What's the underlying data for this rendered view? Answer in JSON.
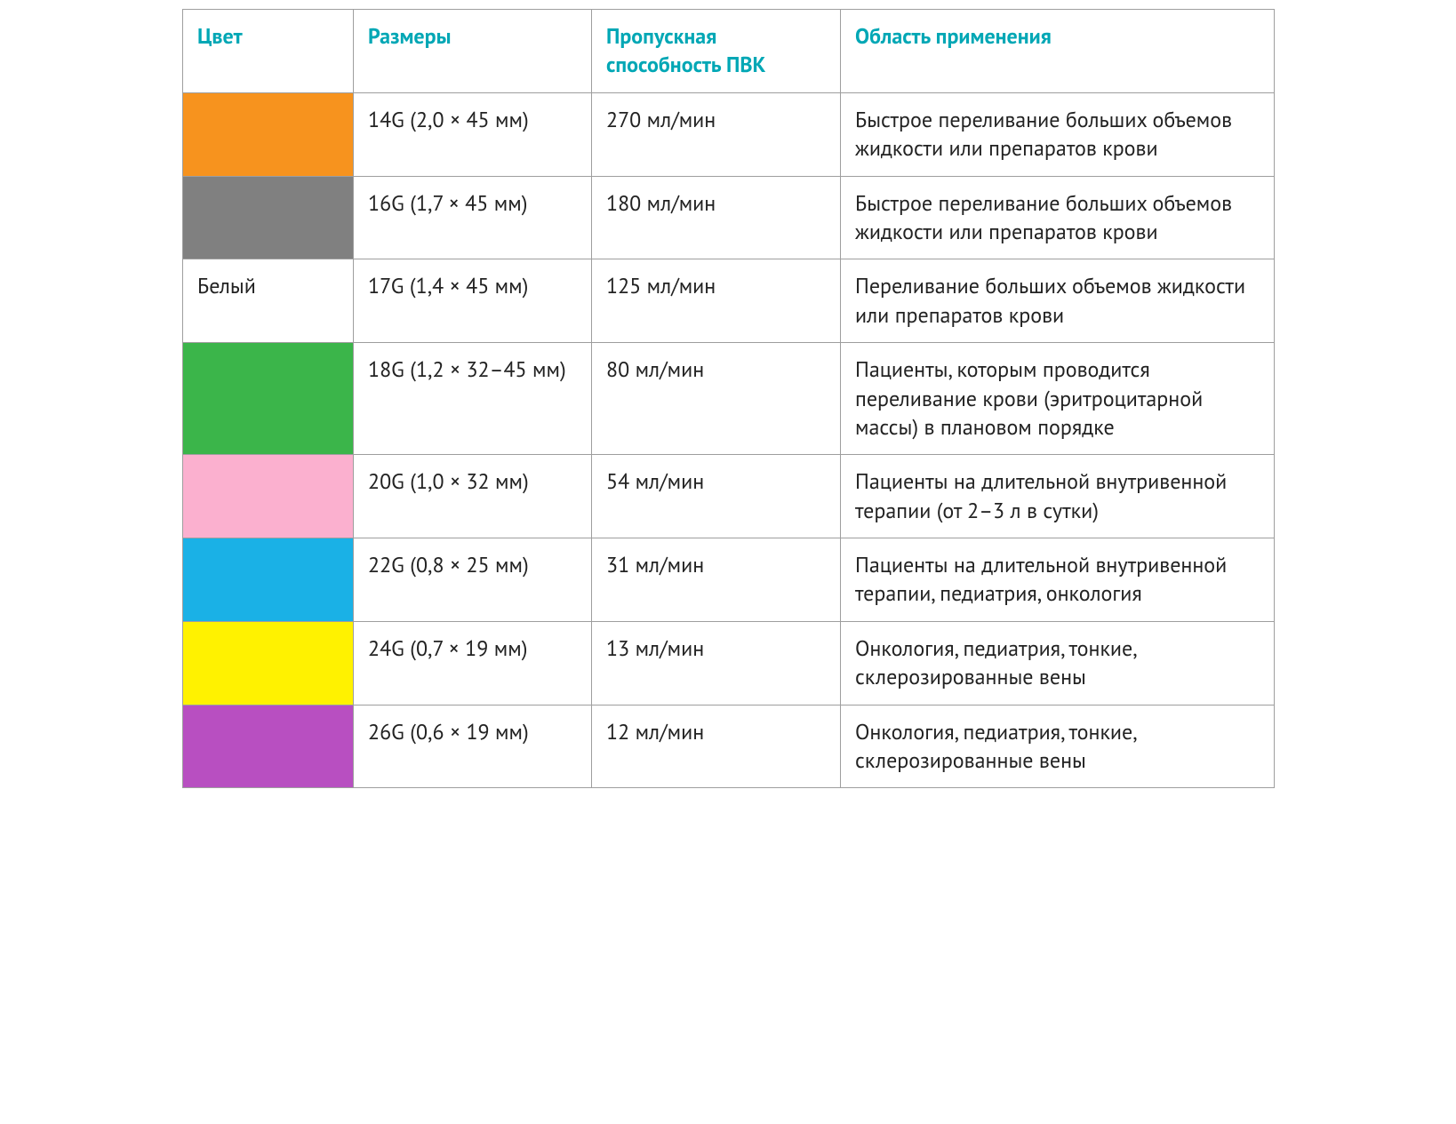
{
  "table": {
    "header_color": "#00a7b5",
    "border_color": "#9e9e9e",
    "text_color": "#222222",
    "font_size_pt": 18,
    "header_font_weight": 700,
    "columns": [
      {
        "key": "color",
        "label": "Цвет"
      },
      {
        "key": "size",
        "label": "Размеры"
      },
      {
        "key": "throughput",
        "label": "Пропускная способность ПВК"
      },
      {
        "key": "application",
        "label": "Область применения"
      }
    ],
    "rows": [
      {
        "color_swatch": "#f7931e",
        "color_text": "",
        "size": "14G (2,0 × 45 мм)",
        "throughput": "270 мл/мин",
        "application": "Быстрое переливание больших объемов жидкости или препаратов крови"
      },
      {
        "color_swatch": "#808080",
        "color_text": "",
        "size": "16G (1,7 × 45 мм)",
        "throughput": "180 мл/мин",
        "application": "Быстрое переливание больших объемов жидкости или препаратов крови"
      },
      {
        "color_swatch": "#ffffff",
        "color_text": "Белый",
        "size": "17G (1,4 × 45 мм)",
        "throughput": "125 мл/мин",
        "application": "Переливание больших объемов жидкости или препаратов крови"
      },
      {
        "color_swatch": "#3bb54a",
        "color_text": "",
        "size": "18G (1,2 × 32–45 мм)",
        "throughput": "80 мл/мин",
        "application": "Пациенты, которым проводится переливание крови (эритроцитарной массы) в плановом порядке"
      },
      {
        "color_swatch": "#fbb0cf",
        "color_text": "",
        "size": "20G (1,0 × 32 мм)",
        "throughput": "54 мл/мин",
        "application": "Пациенты на длительной внутривенной терапии (от 2–3 л в сутки)"
      },
      {
        "color_swatch": "#1ab1e6",
        "color_text": "",
        "size": "22G (0,8 × 25 мм)",
        "throughput": "31 мл/мин",
        "application": "Пациенты на длительной внутривенной терапии, педиатрия, онкология"
      },
      {
        "color_swatch": "#fff200",
        "color_text": "",
        "size": "24G (0,7 × 19 мм)",
        "throughput": "13 мл/мин",
        "application": "Онкология, педиатрия, тонкие, склерозированные вены"
      },
      {
        "color_swatch": "#b84fc1",
        "color_text": "",
        "size": "26G (0,6 × 19 мм)",
        "throughput": "12 мл/мин",
        "application": "Онкология, педиатрия, тонкие, склерозированные вены"
      }
    ]
  }
}
